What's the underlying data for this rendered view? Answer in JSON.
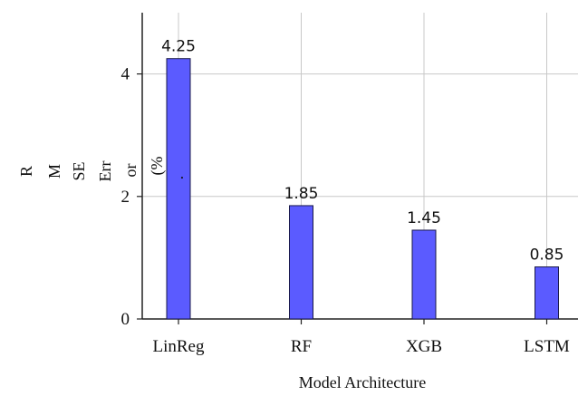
{
  "chart_data": {
    "type": "bar",
    "categories": [
      "LinReg",
      "RF",
      "XGB",
      "LSTM"
    ],
    "values": [
      4.25,
      1.85,
      1.45,
      0.85
    ],
    "data_labels": [
      "4.25",
      "1.85",
      "1.45",
      "0.85"
    ],
    "title": "",
    "xlabel": "Model Architecture",
    "ylabel": "RMSE Error (%)",
    "ylabel_fragments": [
      "R",
      "M",
      "SE",
      "Err",
      "or",
      "(%",
      "."
    ],
    "yticks": [
      0,
      2,
      4
    ],
    "ytick_labels": [
      "0",
      "2",
      "4"
    ],
    "ylim": [
      0,
      5
    ],
    "grid": true,
    "bar_color": "#5b5bff",
    "bar_edge_color": "#1a1a4a"
  }
}
